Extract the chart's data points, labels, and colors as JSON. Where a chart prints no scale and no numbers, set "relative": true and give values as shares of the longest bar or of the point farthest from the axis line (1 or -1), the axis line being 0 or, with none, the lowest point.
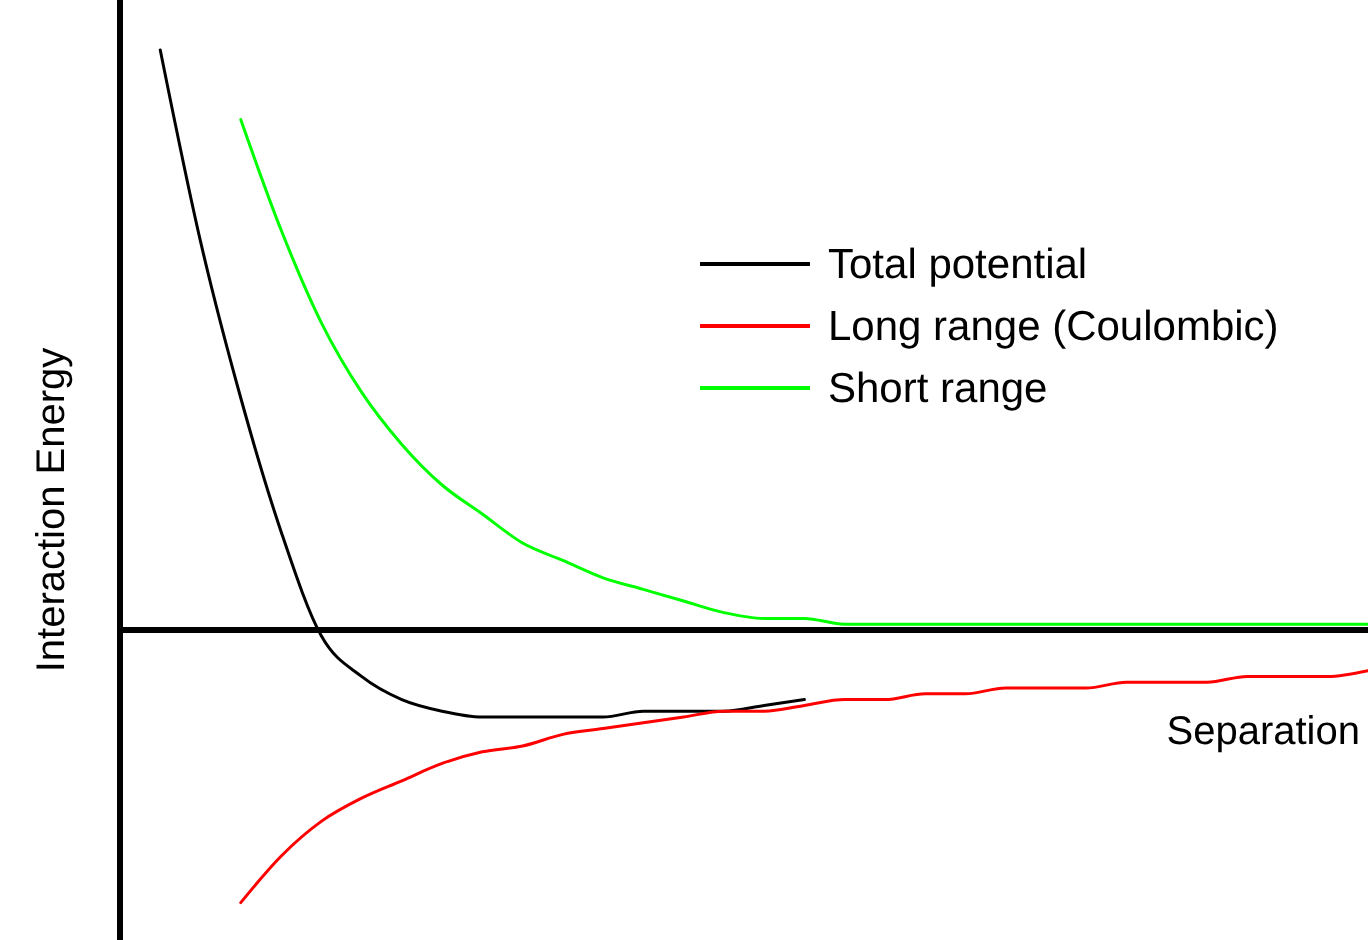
{
  "chart_data": {
    "type": "line",
    "relative": true,
    "xlabel": "Separation",
    "ylabel": "Interaction Energy",
    "legend": "top right",
    "categories": [
      null,
      null,
      null,
      null,
      null,
      null,
      null,
      null,
      null,
      null,
      null,
      null,
      null,
      null,
      null,
      null,
      null,
      null,
      null,
      null,
      null,
      null,
      null,
      null,
      null,
      null,
      null,
      null,
      null,
      null,
      null,
      null
    ],
    "series": [
      {
        "name": "Total potential",
        "color": "#000000",
        "values": [
          null,
          1,
          0.67,
          0.4,
          0.17,
          -0.01,
          -0.08,
          -0.12,
          -0.14,
          -0.15,
          -0.15,
          -0.15,
          -0.15,
          -0.14,
          -0.14,
          -0.14,
          -0.13,
          -0.12,
          null,
          null,
          null,
          null,
          null,
          null,
          null,
          null,
          null,
          null,
          null,
          null,
          null,
          null
        ]
      },
      {
        "name": "Long range (Coulombic)",
        "color": "#ff0000",
        "values": [
          null,
          null,
          null,
          -0.47,
          -0.39,
          -0.33,
          -0.29,
          -0.26,
          -0.23,
          -0.21,
          -0.2,
          -0.18,
          -0.17,
          -0.16,
          -0.15,
          -0.14,
          -0.14,
          -0.13,
          -0.12,
          -0.12,
          -0.11,
          -0.11,
          -0.1,
          -0.1,
          -0.1,
          -0.09,
          -0.09,
          -0.09,
          -0.08,
          -0.08,
          -0.08,
          -0.07
        ]
      },
      {
        "name": "Short range",
        "color": "#00ff00",
        "values": [
          null,
          null,
          null,
          0.88,
          0.69,
          0.53,
          0.41,
          0.32,
          0.25,
          0.2,
          0.15,
          0.12,
          0.09,
          0.07,
          0.05,
          0.03,
          0.02,
          0.02,
          0.01,
          0.01,
          0.01,
          0.01,
          0.01,
          0.01,
          0.01,
          0.01,
          0.01,
          0.01,
          0.01,
          0.01,
          0.01,
          0.01
        ]
      }
    ]
  }
}
